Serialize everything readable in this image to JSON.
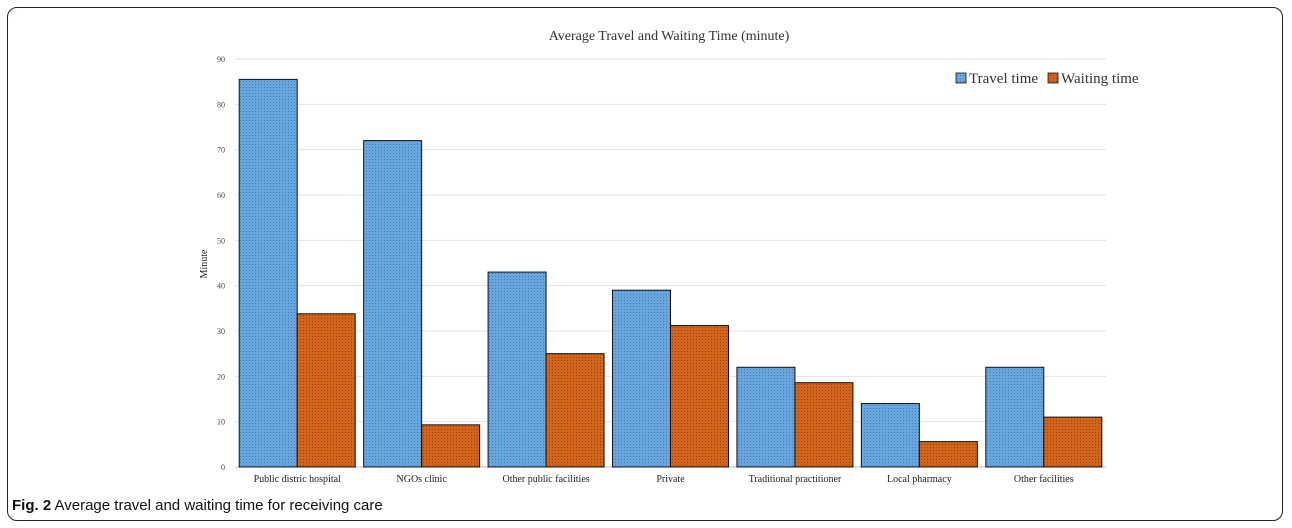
{
  "caption": {
    "label": "Fig. 2",
    "text": " Average travel and waiting time for receiving care"
  },
  "chart_data": {
    "type": "bar",
    "title": "Average Travel and Waiting Time  (minute)",
    "xlabel": "",
    "ylabel": "Minute",
    "ylim": [
      0,
      90
    ],
    "yticks": [
      0,
      10,
      20,
      30,
      40,
      50,
      60,
      70,
      80,
      90
    ],
    "grid": true,
    "legend_position": "top-right",
    "categories": [
      "Public distric hospital",
      "NGOs  clinic",
      "Other public facilities",
      "Private",
      "Traditional practitioner",
      "Local pharmacy",
      "Other facilities"
    ],
    "series": [
      {
        "name": "Travel time",
        "color": "#5b9bd5",
        "values": [
          85.5,
          72,
          43,
          39,
          22,
          14,
          22
        ]
      },
      {
        "name": "Waiting time",
        "color": "#c55a11",
        "values": [
          33.8,
          9.3,
          25,
          31.2,
          18.6,
          5.6,
          11
        ]
      }
    ]
  }
}
